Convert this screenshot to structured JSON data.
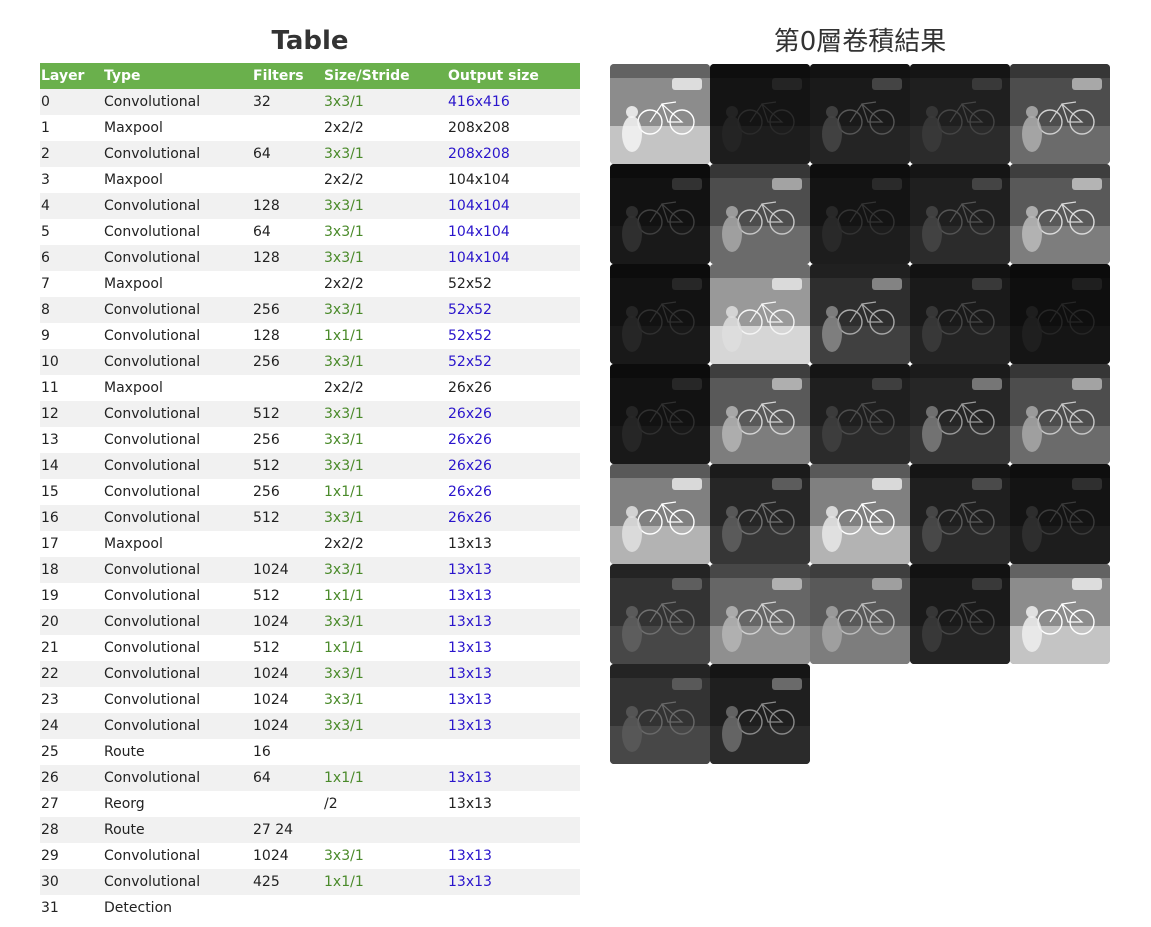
{
  "table": {
    "title": "Table",
    "headers": [
      "Layer",
      "Type",
      "Filters",
      "Size/Stride",
      "Output size"
    ],
    "rows": [
      {
        "layer": "0",
        "type": "Convolutional",
        "filters": "32",
        "size": "3x3/1",
        "output": "416x416"
      },
      {
        "layer": "1",
        "type": "Maxpool",
        "filters": "",
        "size": "2x2/2",
        "output": "208x208"
      },
      {
        "layer": "2",
        "type": "Convolutional",
        "filters": "64",
        "size": "3x3/1",
        "output": "208x208"
      },
      {
        "layer": "3",
        "type": "Maxpool",
        "filters": "",
        "size": "2x2/2",
        "output": "104x104"
      },
      {
        "layer": "4",
        "type": "Convolutional",
        "filters": "128",
        "size": "3x3/1",
        "output": "104x104"
      },
      {
        "layer": "5",
        "type": "Convolutional",
        "filters": "64",
        "size": "3x3/1",
        "output": "104x104"
      },
      {
        "layer": "6",
        "type": "Convolutional",
        "filters": "128",
        "size": "3x3/1",
        "output": "104x104"
      },
      {
        "layer": "7",
        "type": "Maxpool",
        "filters": "",
        "size": "2x2/2",
        "output": "52x52"
      },
      {
        "layer": "8",
        "type": "Convolutional",
        "filters": "256",
        "size": "3x3/1",
        "output": "52x52"
      },
      {
        "layer": "9",
        "type": "Convolutional",
        "filters": "128",
        "size": "1x1/1",
        "output": "52x52"
      },
      {
        "layer": "10",
        "type": "Convolutional",
        "filters": "256",
        "size": "3x3/1",
        "output": "52x52"
      },
      {
        "layer": "11",
        "type": "Maxpool",
        "filters": "",
        "size": "2x2/2",
        "output": "26x26"
      },
      {
        "layer": "12",
        "type": "Convolutional",
        "filters": "512",
        "size": "3x3/1",
        "output": "26x26"
      },
      {
        "layer": "13",
        "type": "Convolutional",
        "filters": "256",
        "size": "3x3/1",
        "output": "26x26"
      },
      {
        "layer": "14",
        "type": "Convolutional",
        "filters": "512",
        "size": "3x3/1",
        "output": "26x26"
      },
      {
        "layer": "15",
        "type": "Convolutional",
        "filters": "256",
        "size": "1x1/1",
        "output": "26x26"
      },
      {
        "layer": "16",
        "type": "Convolutional",
        "filters": "512",
        "size": "3x3/1",
        "output": "26x26"
      },
      {
        "layer": "17",
        "type": "Maxpool",
        "filters": "",
        "size": "2x2/2",
        "output": "13x13"
      },
      {
        "layer": "18",
        "type": "Convolutional",
        "filters": "1024",
        "size": "3x3/1",
        "output": "13x13"
      },
      {
        "layer": "19",
        "type": "Convolutional",
        "filters": "512",
        "size": "1x1/1",
        "output": "13x13"
      },
      {
        "layer": "20",
        "type": "Convolutional",
        "filters": "1024",
        "size": "3x3/1",
        "output": "13x13"
      },
      {
        "layer": "21",
        "type": "Convolutional",
        "filters": "512",
        "size": "1x1/1",
        "output": "13x13"
      },
      {
        "layer": "22",
        "type": "Convolutional",
        "filters": "1024",
        "size": "3x3/1",
        "output": "13x13"
      },
      {
        "layer": "23",
        "type": "Convolutional",
        "filters": "1024",
        "size": "3x3/1",
        "output": "13x13"
      },
      {
        "layer": "24",
        "type": "Convolutional",
        "filters": "1024",
        "size": "3x3/1",
        "output": "13x13"
      },
      {
        "layer": "25",
        "type": "Route",
        "filters": "16",
        "size": "",
        "output": ""
      },
      {
        "layer": "26",
        "type": "Convolutional",
        "filters": "64",
        "size": "1x1/1",
        "output": "13x13"
      },
      {
        "layer": "27",
        "type": "Reorg",
        "filters": "",
        "size": "/2",
        "output": "13x13"
      },
      {
        "layer": "28",
        "type": "Route",
        "filters": "27 24",
        "size": "",
        "output": ""
      },
      {
        "layer": "29",
        "type": "Convolutional",
        "filters": "1024",
        "size": "3x3/1",
        "output": "13x13"
      },
      {
        "layer": "30",
        "type": "Convolutional",
        "filters": "425",
        "size": "1x1/1",
        "output": "13x13"
      },
      {
        "layer": "31",
        "type": "Detection",
        "filters": "",
        "size": "",
        "output": ""
      }
    ]
  },
  "feature_maps": {
    "title": "第0層卷積結果",
    "maps": [
      {
        "brightness": 0.55,
        "edge": 0.9
      },
      {
        "brightness": 0.08,
        "edge": 0.15
      },
      {
        "brightness": 0.1,
        "edge": 0.4
      },
      {
        "brightness": 0.12,
        "edge": 0.25
      },
      {
        "brightness": 0.3,
        "edge": 0.85
      },
      {
        "brightness": 0.07,
        "edge": 0.3
      },
      {
        "brightness": 0.3,
        "edge": 0.8
      },
      {
        "brightness": 0.08,
        "edge": 0.2
      },
      {
        "brightness": 0.12,
        "edge": 0.35
      },
      {
        "brightness": 0.35,
        "edge": 0.85
      },
      {
        "brightness": 0.07,
        "edge": 0.2
      },
      {
        "brightness": 0.6,
        "edge": 0.6
      },
      {
        "brightness": 0.18,
        "edge": 0.8
      },
      {
        "brightness": 0.1,
        "edge": 0.3
      },
      {
        "brightness": 0.06,
        "edge": 0.15
      },
      {
        "brightness": 0.07,
        "edge": 0.2
      },
      {
        "brightness": 0.35,
        "edge": 0.8
      },
      {
        "brightness": 0.12,
        "edge": 0.3
      },
      {
        "brightness": 0.15,
        "edge": 0.75
      },
      {
        "brightness": 0.3,
        "edge": 0.8
      },
      {
        "brightness": 0.5,
        "edge": 0.85
      },
      {
        "brightness": 0.15,
        "edge": 0.5
      },
      {
        "brightness": 0.5,
        "edge": 0.9
      },
      {
        "brightness": 0.12,
        "edge": 0.4
      },
      {
        "brightness": 0.08,
        "edge": 0.25
      },
      {
        "brightness": 0.2,
        "edge": 0.4
      },
      {
        "brightness": 0.4,
        "edge": 0.7
      },
      {
        "brightness": 0.35,
        "edge": 0.65
      },
      {
        "brightness": 0.1,
        "edge": 0.3
      },
      {
        "brightness": 0.55,
        "edge": 0.85
      },
      {
        "brightness": 0.2,
        "edge": 0.35
      },
      {
        "brightness": 0.12,
        "edge": 0.7
      }
    ]
  }
}
